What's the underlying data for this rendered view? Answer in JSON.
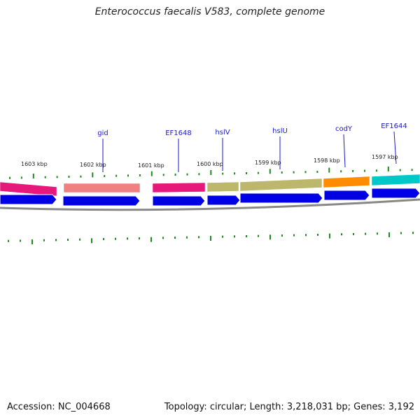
{
  "title": "Enterococcus faecalis V583, complete genome",
  "footer": {
    "accession": "Accession: NC_004668",
    "summary": "Topology: circular; Length: 3,218,031 bp; Genes: 3,192"
  },
  "colors": {
    "tick": "#1d8a1d",
    "forward_arrow": "#0000e6",
    "backbone": "#888888",
    "gene_label": "#1a1ad0",
    "pointer_line": "#1a1ad0"
  },
  "kbp_labels": [
    "1603 kbp",
    "1602 kbp",
    "1601 kbp",
    "1600 kbp",
    "1599 kbp",
    "1598 kbp",
    "1597 kbp"
  ],
  "gene_labels": [
    "gid",
    "EF1648",
    "hslV",
    "hslU",
    "codY",
    "EF1644"
  ],
  "feature_segments": [
    {
      "color": "#e6187a"
    },
    {
      "color": "#f08080"
    },
    {
      "color": "#e6187a"
    },
    {
      "color": "#bdb76b"
    },
    {
      "color": "#bdb76b"
    },
    {
      "color": "#ff8c00"
    },
    {
      "color": "#00c8c8"
    }
  ]
}
